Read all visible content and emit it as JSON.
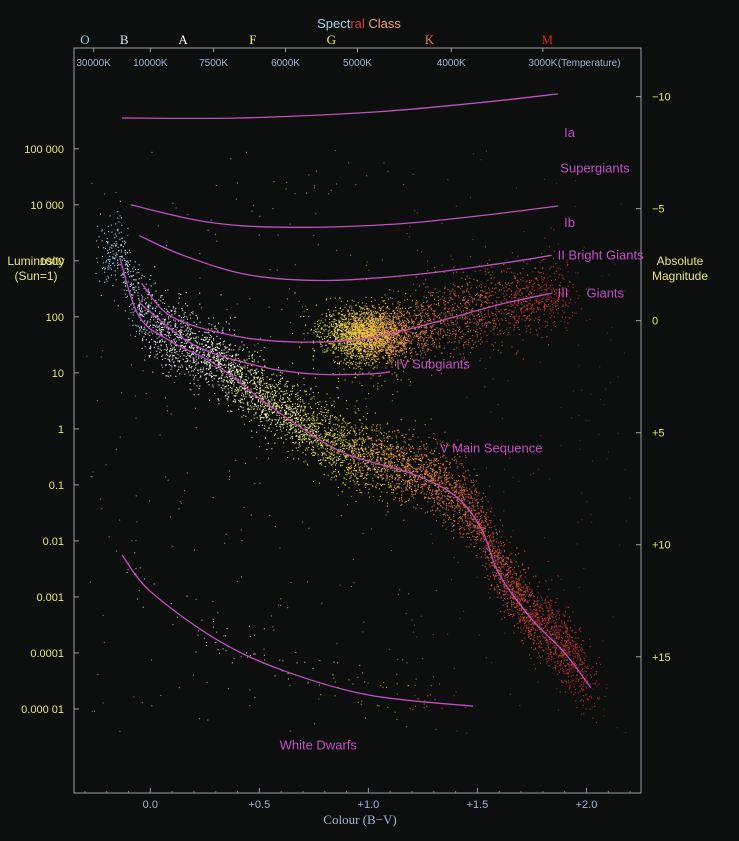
{
  "chart_data": {
    "type": "scatter",
    "title_parts": [
      {
        "text": "Spect",
        "color": "#9fd8e8"
      },
      {
        "text": "ral ",
        "color": "#e04020"
      },
      {
        "text": "Class",
        "color": "#f0a060"
      }
    ],
    "xlabel": "Colour (B−V)",
    "ylabel_left": [
      "Luminosity",
      "(Sun=1)"
    ],
    "ylabel_right": [
      "Absolute",
      "Magnitude"
    ],
    "top_axis_label": "(Temperature)",
    "xlim": [
      -0.35,
      2.25
    ],
    "ylim_log_luminosity": [
      -6.5,
      6.8
    ],
    "x_ticks": [
      {
        "value": 0.0,
        "label": "0.0"
      },
      {
        "value": 0.5,
        "label": "+0.5"
      },
      {
        "value": 1.0,
        "label": "+1.0"
      },
      {
        "value": 1.5,
        "label": "+1.5"
      },
      {
        "value": 2.0,
        "label": "+2.0"
      }
    ],
    "luminosity_ticks": [
      {
        "log": 5,
        "label": "100 000"
      },
      {
        "log": 4,
        "label": "10 000"
      },
      {
        "log": 3,
        "label": "1000"
      },
      {
        "log": 2,
        "label": "100"
      },
      {
        "log": 1,
        "label": "10"
      },
      {
        "log": 0,
        "label": "1"
      },
      {
        "log": -1,
        "label": "0.1"
      },
      {
        "log": -2,
        "label": "0.01"
      },
      {
        "log": -3,
        "label": "0.001"
      },
      {
        "log": -4,
        "label": "0.0001"
      },
      {
        "log": -5,
        "label": "0.000 01"
      }
    ],
    "magnitude_ticks": [
      {
        "mag": -10,
        "label": "−10"
      },
      {
        "mag": -5,
        "label": "−5"
      },
      {
        "mag": 0,
        "label": "0"
      },
      {
        "mag": 5,
        "label": "+5"
      },
      {
        "mag": 10,
        "label": "+10"
      },
      {
        "mag": 15,
        "label": "+15"
      }
    ],
    "spectral_classes": [
      {
        "label": "O",
        "bv": -0.3,
        "color": "#8fd8e8"
      },
      {
        "label": "B",
        "bv": -0.12,
        "color": "#d8e8f0"
      },
      {
        "label": "A",
        "bv": 0.15,
        "color": "#ffffff"
      },
      {
        "label": "F",
        "bv": 0.47,
        "color": "#f0f070"
      },
      {
        "label": "G",
        "bv": 0.83,
        "color": "#f0f020"
      },
      {
        "label": "K",
        "bv": 1.28,
        "color": "#f07040"
      },
      {
        "label": "M",
        "bv": 1.82,
        "color": "#e02020"
      }
    ],
    "temperatures": [
      {
        "label": "30000K",
        "bv": -0.26
      },
      {
        "label": "10000K",
        "bv": 0.0
      },
      {
        "label": "7500K",
        "bv": 0.29
      },
      {
        "label": "6000K",
        "bv": 0.62
      },
      {
        "label": "5000K",
        "bv": 0.95
      },
      {
        "label": "4000K",
        "bv": 1.38
      },
      {
        "label": "3000K",
        "bv": 1.8
      }
    ],
    "series": [
      {
        "name": "Ia",
        "label": "Ia",
        "label_at": [
          1.87,
          5.28
        ],
        "points": [
          [
            -0.13,
            5.55
          ],
          [
            0.4,
            5.55
          ],
          [
            1.0,
            5.65
          ],
          [
            1.5,
            5.82
          ],
          [
            1.87,
            5.98
          ]
        ]
      },
      {
        "name": "Ib",
        "label": "Ib",
        "label_at": [
          1.87,
          3.68
        ],
        "points": [
          [
            -0.09,
            4.0
          ],
          [
            0.25,
            3.7
          ],
          [
            0.6,
            3.6
          ],
          [
            1.1,
            3.65
          ],
          [
            1.5,
            3.8
          ],
          [
            1.87,
            3.98
          ]
        ]
      },
      {
        "name": "II",
        "label": "II Bright Giants",
        "label_at": [
          1.84,
          3.1
        ],
        "points": [
          [
            -0.05,
            3.45
          ],
          [
            0.15,
            3.1
          ],
          [
            0.45,
            2.75
          ],
          [
            0.8,
            2.65
          ],
          [
            1.2,
            2.75
          ],
          [
            1.6,
            2.95
          ],
          [
            1.84,
            3.1
          ]
        ]
      },
      {
        "name": "III",
        "label": "III",
        "label_at": [
          1.84,
          2.42
        ],
        "points": [
          [
            -0.04,
            2.6
          ],
          [
            0.1,
            2.0
          ],
          [
            0.4,
            1.65
          ],
          [
            0.7,
            1.55
          ],
          [
            1.0,
            1.62
          ],
          [
            1.3,
            1.9
          ],
          [
            1.6,
            2.22
          ],
          [
            1.84,
            2.42
          ]
        ]
      },
      {
        "name": "IV",
        "label": "IV Subgiants",
        "label_at": [
          1.1,
          1.15
        ],
        "points": [
          [
            -0.05,
            2.25
          ],
          [
            0.2,
            1.5
          ],
          [
            0.5,
            1.12
          ],
          [
            0.75,
            0.98
          ],
          [
            1.0,
            0.98
          ],
          [
            1.1,
            1.02
          ]
        ]
      },
      {
        "name": "V",
        "label": "V  Main Sequence",
        "label_at": [
          1.3,
          -0.35
        ],
        "points": [
          [
            -0.14,
            3.05
          ],
          [
            -0.05,
            2.0
          ],
          [
            0.1,
            1.55
          ],
          [
            0.3,
            1.15
          ],
          [
            0.5,
            0.55
          ],
          [
            0.7,
            0.0
          ],
          [
            0.9,
            -0.45
          ],
          [
            1.2,
            -0.8
          ],
          [
            1.4,
            -1.2
          ],
          [
            1.52,
            -1.8
          ],
          [
            1.6,
            -2.6
          ],
          [
            1.75,
            -3.4
          ],
          [
            1.9,
            -4.0
          ],
          [
            2.02,
            -4.62
          ]
        ]
      },
      {
        "name": "White Dwarfs",
        "label": "White Dwarfs",
        "label_at": [
          0.77,
          -5.65
        ],
        "points": [
          [
            -0.13,
            -2.25
          ],
          [
            0.0,
            -2.9
          ],
          [
            0.3,
            -3.75
          ],
          [
            0.6,
            -4.3
          ],
          [
            1.0,
            -4.75
          ],
          [
            1.48,
            -4.95
          ]
        ]
      }
    ],
    "extra_labels": [
      {
        "text": "Supergiants",
        "at": [
          1.88,
          4.65
        ]
      },
      {
        "text": "Giants",
        "at": [
          2.0,
          2.42
        ]
      }
    ],
    "density_regions": [
      {
        "name": "main_sequence",
        "count": 6000
      },
      {
        "name": "giant_clump",
        "count": 2200
      },
      {
        "name": "red_giant_branch",
        "count": 1800
      },
      {
        "name": "white_dwarfs",
        "count": 110
      },
      {
        "name": "background",
        "count": 500
      }
    ]
  }
}
